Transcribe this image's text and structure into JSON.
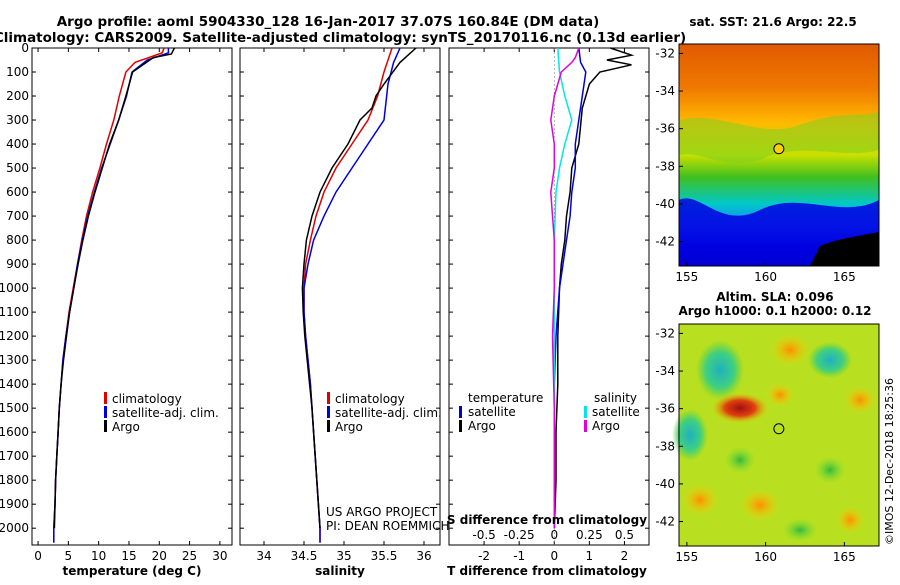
{
  "title_line1": "Argo profile: aoml 5904330_128 16-Jan-2017 37.07S 160.84E (DM data)",
  "title_line2": "Climatology: CARS2009. Satellite-adjusted climatology: synTS_20170116.nc (0.13d earlier)",
  "colors": {
    "climatology": "#e00000",
    "satellite": "#0000dd",
    "argo": "#000000",
    "s_satellite": "#00e6e6",
    "s_argo": "#e000e0"
  },
  "chart_data": [
    {
      "type": "line",
      "xlabel": "temperature (deg C)",
      "xlim": [
        -1,
        32
      ],
      "ylim": [
        2070,
        0
      ],
      "xticks": [
        0,
        5,
        10,
        15,
        20,
        25,
        30
      ],
      "yticks": [
        0,
        100,
        200,
        300,
        400,
        500,
        600,
        700,
        800,
        900,
        1000,
        1100,
        1200,
        1300,
        1400,
        1500,
        1600,
        1700,
        1800,
        1900,
        2000
      ],
      "legend": [
        "climatology",
        "satellite-adj. clim.",
        "Argo"
      ],
      "series": [
        {
          "key": "climatology",
          "points": [
            [
              20.8,
              0
            ],
            [
              20.5,
              20
            ],
            [
              16,
              60
            ],
            [
              14.5,
              100
            ],
            [
              13.4,
              200
            ],
            [
              12.5,
              300
            ],
            [
              11.3,
              400
            ],
            [
              10.2,
              500
            ],
            [
              9,
              600
            ],
            [
              8,
              700
            ],
            [
              7.2,
              800
            ],
            [
              6.5,
              900
            ],
            [
              5.8,
              1000
            ],
            [
              5.1,
              1100
            ],
            [
              4.6,
              1200
            ],
            [
              4.1,
              1300
            ],
            [
              3.8,
              1400
            ],
            [
              3.5,
              1500
            ],
            [
              3.3,
              1600
            ],
            [
              3.1,
              1700
            ],
            [
              2.9,
              1800
            ],
            [
              2.8,
              1900
            ],
            [
              2.6,
              2000
            ],
            [
              2.6,
              2060
            ]
          ]
        },
        {
          "key": "satellite",
          "points": [
            [
              21.5,
              0
            ],
            [
              21.5,
              20
            ],
            [
              18,
              50
            ],
            [
              15.5,
              100
            ],
            [
              14.6,
              200
            ],
            [
              13.3,
              300
            ],
            [
              11.9,
              400
            ],
            [
              10.5,
              500
            ],
            [
              9.3,
              600
            ],
            [
              8.2,
              700
            ],
            [
              7.3,
              800
            ],
            [
              6.5,
              900
            ],
            [
              5.9,
              1000
            ],
            [
              5.2,
              1100
            ],
            [
              4.6,
              1200
            ],
            [
              4.1,
              1300
            ],
            [
              3.8,
              1400
            ],
            [
              3.5,
              1500
            ],
            [
              3.3,
              1600
            ],
            [
              3.1,
              1700
            ],
            [
              2.9,
              1800
            ],
            [
              2.8,
              1900
            ],
            [
              2.6,
              2000
            ],
            [
              2.6,
              2060
            ]
          ]
        },
        {
          "key": "argo",
          "points": [
            [
              22.5,
              0
            ],
            [
              22,
              25
            ],
            [
              19,
              40
            ],
            [
              15.6,
              100
            ],
            [
              14.5,
              200
            ],
            [
              13.3,
              300
            ],
            [
              11.8,
              400
            ],
            [
              10.6,
              500
            ],
            [
              9.4,
              600
            ],
            [
              8.3,
              700
            ],
            [
              7.4,
              800
            ],
            [
              6.6,
              900
            ],
            [
              5.9,
              1000
            ],
            [
              5.2,
              1100
            ],
            [
              4.7,
              1200
            ],
            [
              4.2,
              1300
            ],
            [
              3.8,
              1400
            ],
            [
              3.5,
              1500
            ],
            [
              3.3,
              1600
            ],
            [
              3.1,
              1700
            ],
            [
              2.9,
              1800
            ],
            [
              2.8,
              1900
            ],
            [
              2.7,
              2000
            ]
          ]
        }
      ]
    },
    {
      "type": "line",
      "xlabel": "salinity",
      "xlim": [
        33.7,
        36.2
      ],
      "ylim": [
        2070,
        0
      ],
      "xticks": [
        34,
        34.5,
        35,
        35.5,
        36
      ],
      "legend": [
        "climatology",
        "satellite-adj. clim.",
        "Argo"
      ],
      "series": [
        {
          "key": "climatology",
          "points": [
            [
              35.6,
              0
            ],
            [
              35.55,
              50
            ],
            [
              35.5,
              100
            ],
            [
              35.42,
              200
            ],
            [
              35.3,
              300
            ],
            [
              35.1,
              400
            ],
            [
              34.9,
              500
            ],
            [
              34.75,
              600
            ],
            [
              34.65,
              700
            ],
            [
              34.58,
              800
            ],
            [
              34.52,
              900
            ],
            [
              34.5,
              1000
            ],
            [
              34.5,
              1100
            ],
            [
              34.52,
              1200
            ],
            [
              34.55,
              1300
            ],
            [
              34.58,
              1400
            ],
            [
              34.6,
              1500
            ],
            [
              34.62,
              1600
            ],
            [
              34.64,
              1700
            ],
            [
              34.66,
              1800
            ],
            [
              34.68,
              1900
            ],
            [
              34.7,
              2000
            ],
            [
              34.7,
              2060
            ]
          ]
        },
        {
          "key": "satellite",
          "points": [
            [
              35.7,
              0
            ],
            [
              35.62,
              60
            ],
            [
              35.55,
              150
            ],
            [
              35.5,
              300
            ],
            [
              35.3,
              400
            ],
            [
              35.1,
              500
            ],
            [
              34.9,
              600
            ],
            [
              34.75,
              700
            ],
            [
              34.62,
              800
            ],
            [
              34.55,
              900
            ],
            [
              34.5,
              1000
            ],
            [
              34.5,
              1100
            ],
            [
              34.52,
              1200
            ],
            [
              34.55,
              1300
            ],
            [
              34.58,
              1400
            ],
            [
              34.6,
              1500
            ],
            [
              34.62,
              1600
            ],
            [
              34.64,
              1700
            ],
            [
              34.66,
              1800
            ],
            [
              34.68,
              1900
            ],
            [
              34.7,
              2000
            ],
            [
              34.7,
              2060
            ]
          ]
        },
        {
          "key": "argo",
          "points": [
            [
              35.9,
              0
            ],
            [
              35.8,
              30
            ],
            [
              35.7,
              60
            ],
            [
              35.5,
              150
            ],
            [
              35.4,
              200
            ],
            [
              35.35,
              250
            ],
            [
              35.2,
              300
            ],
            [
              35.05,
              400
            ],
            [
              34.85,
              500
            ],
            [
              34.7,
              600
            ],
            [
              34.6,
              700
            ],
            [
              34.53,
              800
            ],
            [
              34.5,
              900
            ],
            [
              34.48,
              1000
            ],
            [
              34.49,
              1100
            ],
            [
              34.51,
              1200
            ],
            [
              34.54,
              1300
            ],
            [
              34.57,
              1400
            ],
            [
              34.6,
              1500
            ],
            [
              34.62,
              1600
            ],
            [
              34.64,
              1700
            ],
            [
              34.66,
              1800
            ],
            [
              34.68,
              1900
            ],
            [
              34.7,
              2000
            ]
          ]
        }
      ]
    },
    {
      "type": "line",
      "xlabel": "T difference from climatology",
      "xlabel2": "S difference from climatology",
      "xlim": [
        -3,
        2.7
      ],
      "ylim": [
        2070,
        0
      ],
      "xticks": [
        -2,
        -1,
        0,
        1,
        2
      ],
      "xticks2": [
        "-0.5",
        "-0.25",
        "0",
        "0.25",
        "0.5"
      ],
      "legend_left_title": "temperature",
      "legend_right_title": "salinity",
      "legend_left": [
        "satellite",
        "Argo"
      ],
      "legend_right": [
        "satellite",
        "Argo"
      ],
      "series": [
        {
          "key": "argo",
          "points": [
            [
              1.6,
              0
            ],
            [
              2.2,
              30
            ],
            [
              1.5,
              50
            ],
            [
              2.2,
              70
            ],
            [
              1.3,
              100
            ],
            [
              1.0,
              150
            ],
            [
              0.8,
              250
            ],
            [
              0.7,
              400
            ],
            [
              0.5,
              500
            ],
            [
              0.45,
              600
            ],
            [
              0.35,
              700
            ],
            [
              0.3,
              800
            ],
            [
              0.2,
              900
            ],
            [
              0.15,
              1000
            ],
            [
              0.1,
              1200
            ],
            [
              0.1,
              1400
            ],
            [
              0.05,
              1600
            ],
            [
              0.05,
              1800
            ],
            [
              0.0,
              2000
            ]
          ]
        },
        {
          "key": "satellite",
          "points": [
            [
              0.7,
              0
            ],
            [
              0.75,
              60
            ],
            [
              0.9,
              100
            ],
            [
              0.8,
              200
            ],
            [
              0.7,
              300
            ],
            [
              0.6,
              400
            ],
            [
              0.6,
              500
            ],
            [
              0.5,
              600
            ],
            [
              0.45,
              700
            ],
            [
              0.35,
              800
            ],
            [
              0.25,
              900
            ],
            [
              0.15,
              1000
            ],
            [
              0.05,
              1200
            ],
            [
              0.0,
              1400
            ],
            [
              0.0,
              1600
            ],
            [
              0.0,
              1800
            ],
            [
              0.0,
              2000
            ]
          ]
        },
        {
          "key": "s_satellite",
          "points": [
            [
              0.1,
              0
            ],
            [
              0.15,
              100
            ],
            [
              0.3,
              200
            ],
            [
              0.5,
              300
            ],
            [
              0.3,
              400
            ],
            [
              0.15,
              500
            ],
            [
              0.05,
              600
            ],
            [
              0.0,
              800
            ],
            [
              0.0,
              1000
            ],
            [
              0.0,
              1500
            ],
            [
              0.0,
              2000
            ]
          ]
        },
        {
          "key": "s_argo",
          "points": [
            [
              0.7,
              0
            ],
            [
              0.6,
              40
            ],
            [
              0.5,
              60
            ],
            [
              0.2,
              100
            ],
            [
              0.0,
              200
            ],
            [
              -0.1,
              300
            ],
            [
              0.0,
              400
            ],
            [
              0.0,
              500
            ],
            [
              -0.1,
              600
            ],
            [
              -0.05,
              700
            ],
            [
              0.0,
              800
            ],
            [
              0.0,
              1000
            ],
            [
              -0.05,
              1200
            ],
            [
              0.0,
              1500
            ],
            [
              0.0,
              2000
            ]
          ]
        }
      ]
    }
  ],
  "maps": {
    "sst_title": "sat. SST: 21.6 Argo: 22.5",
    "sla_title1": "Altim. SLA: 0.096",
    "sla_title2": "Argo h1000: 0.1 h2000: 0.12",
    "lat_ticks": [
      "-32",
      "-34",
      "-36",
      "-38",
      "-40",
      "-42"
    ],
    "lon_ticks": [
      "155",
      "160",
      "165"
    ],
    "lat_range": [
      -31.5,
      -43.3
    ],
    "lon_range": [
      154.5,
      167.2
    ],
    "argo_position": {
      "lat": -37.07,
      "lon": 160.84
    }
  },
  "credit1": "US ARGO PROJECT",
  "credit2": "PI: DEAN ROEMMICH",
  "watermark": "©IMOS 12-Dec-2018 18:25:36"
}
